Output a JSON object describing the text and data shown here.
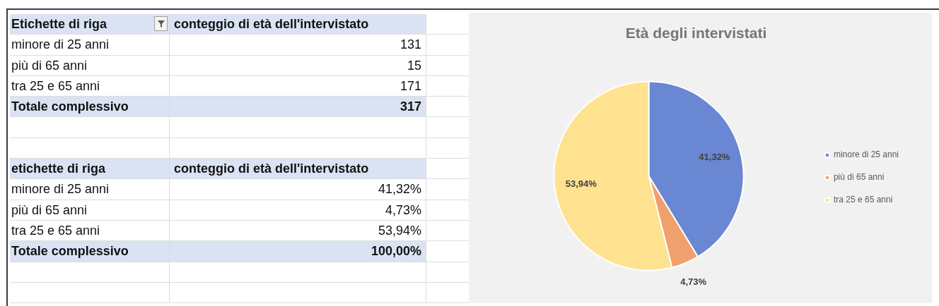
{
  "chart_data": [
    {
      "type": "other",
      "annotations": [
        "Etichette di riga",
        "conteggio di età dell'intervistato",
        "minore di 25 anni",
        "131",
        "più di 65 anni",
        "15",
        "tra 25 e 65 anni",
        "171",
        "Totale complessivo",
        "317"
      ]
    },
    {
      "type": "other",
      "annotations": [
        "etichette di riga",
        "conteggio di età dell'intervistato",
        "minore di 25 anni",
        "41,32%",
        "più di 65 anni",
        "4,73%",
        "tra 25 e 65 anni",
        "53,94%",
        "Totale complessivo",
        "100,00%"
      ]
    },
    {
      "type": "pie",
      "title": "Età degli intervistati",
      "categories": [
        "minore di 25 anni",
        "più di 65 anni",
        "tra 25 e 65 anni"
      ],
      "values": [
        41.32,
        4.73,
        53.94
      ],
      "colors": [
        "#6987d2",
        "#f0a06c",
        "#ffe28f"
      ],
      "value_labels": [
        "41,32%",
        "4,73%",
        "53,94%"
      ],
      "legend": "right"
    }
  ]
}
